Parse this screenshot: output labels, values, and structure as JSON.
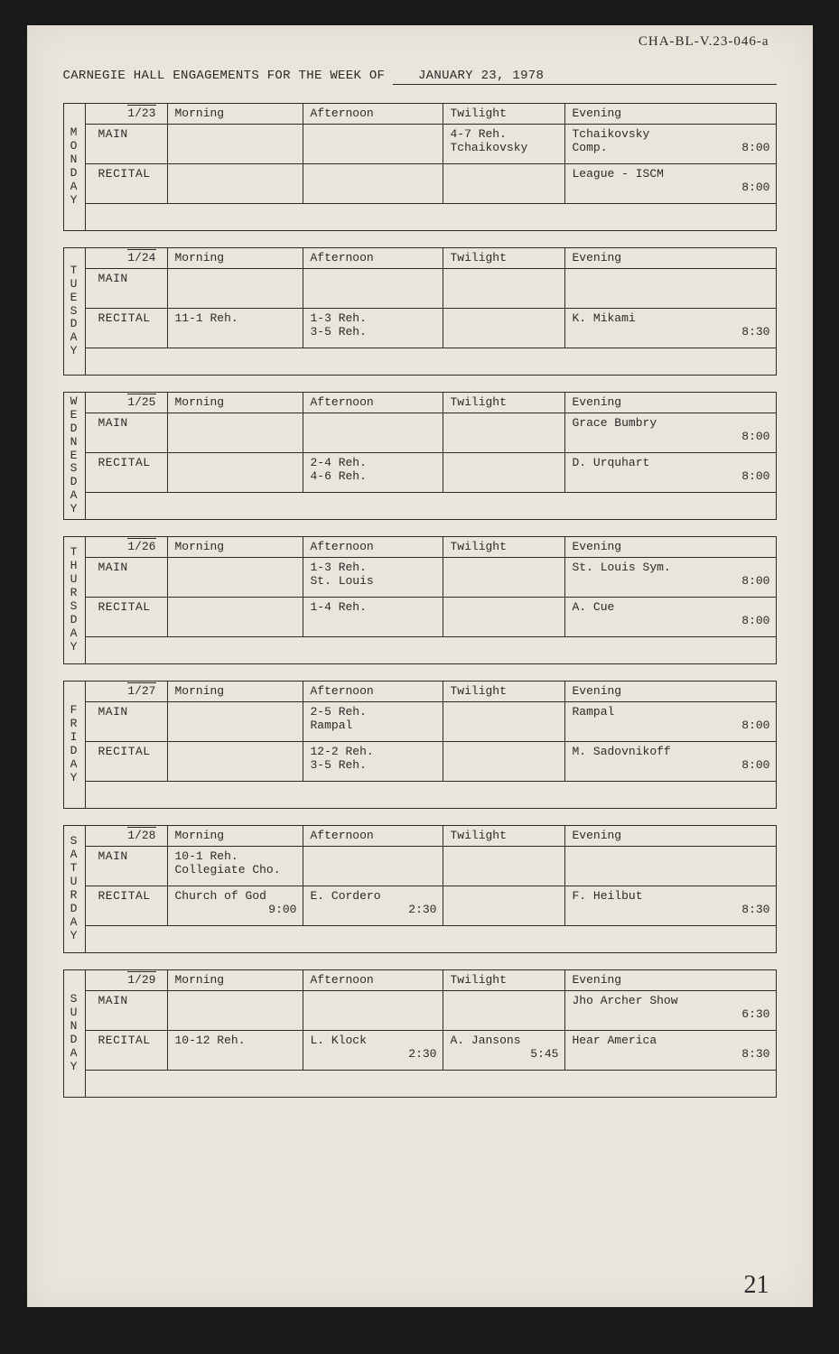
{
  "catalog_mark": "CHA-BL-V.23-046-a",
  "title_prefix": "CARNEGIE HALL ENGAGEMENTS FOR THE WEEK OF ",
  "week_of": "JANUARY 23, 1978",
  "page_number": "21",
  "column_headers": [
    "Morning",
    "Afternoon",
    "Twilight",
    "Evening"
  ],
  "venues": [
    "MAIN",
    "RECITAL"
  ],
  "days": [
    {
      "label": "MONDAY",
      "date": "1/23",
      "rows": [
        {
          "venue": "MAIN",
          "morning": {
            "text": "",
            "faint": false
          },
          "afternoon": {
            "text": "",
            "faint": false
          },
          "twilight": {
            "text": "4-7 Reh.\nTchaikovsky",
            "faint": false
          },
          "evening": {
            "text": "Tchaikovsky",
            "sub": "Comp.",
            "time": "8:00",
            "faint": false
          }
        },
        {
          "venue": "RECITAL",
          "morning": {
            "text": "",
            "faint": false
          },
          "afternoon": {
            "text": "",
            "faint": false
          },
          "twilight": {
            "text": "",
            "faint": false
          },
          "evening": {
            "text": "League - ISCM",
            "time": "8:00",
            "faint": false
          }
        }
      ]
    },
    {
      "label": "TUESDAY",
      "date": "1/24",
      "rows": [
        {
          "venue": "MAIN",
          "morning": {
            "text": "",
            "faint": false
          },
          "afternoon": {
            "text": "",
            "faint": false
          },
          "twilight": {
            "text": "",
            "faint": false
          },
          "evening": {
            "text": "",
            "time": "",
            "faint": true
          }
        },
        {
          "venue": "RECITAL",
          "morning": {
            "text": "11-1 Reh.",
            "faint": false
          },
          "afternoon": {
            "text": "1-3 Reh.\n3-5 Reh.",
            "faint": false
          },
          "twilight": {
            "text": "",
            "faint": false
          },
          "evening": {
            "text": "K. Mikami",
            "time": "8:30",
            "faint": false
          }
        }
      ]
    },
    {
      "label": "WEDNESDAY",
      "date": "1/25",
      "rows": [
        {
          "venue": "MAIN",
          "morning": {
            "text": "",
            "faint": true
          },
          "afternoon": {
            "text": "",
            "faint": false
          },
          "twilight": {
            "text": "",
            "faint": false
          },
          "evening": {
            "text": "Grace Bumbry",
            "time": "8:00",
            "faint": false
          }
        },
        {
          "venue": "RECITAL",
          "morning": {
            "text": "",
            "faint": true
          },
          "afternoon": {
            "text": "2-4 Reh.\n4-6 Reh.",
            "faint": false
          },
          "twilight": {
            "text": "",
            "faint": false
          },
          "evening": {
            "text": "D. Urquhart",
            "time": "8:00",
            "faint": false
          }
        }
      ]
    },
    {
      "label": "THURSDAY",
      "date": "1/26",
      "rows": [
        {
          "venue": "MAIN",
          "morning": {
            "text": "",
            "faint": true
          },
          "afternoon": {
            "text": "1-3 Reh.\nSt. Louis",
            "faint": false
          },
          "twilight": {
            "text": "",
            "faint": false
          },
          "evening": {
            "text": "St. Louis Sym.",
            "time": "8:00",
            "faint": false
          }
        },
        {
          "venue": "RECITAL",
          "morning": {
            "text": "",
            "faint": false
          },
          "afternoon": {
            "text": "1-4 Reh.",
            "faint": false
          },
          "twilight": {
            "text": "",
            "faint": false
          },
          "evening": {
            "text": "A. Cue",
            "time": "8:00",
            "faint": false
          }
        }
      ]
    },
    {
      "label": "FRIDAY",
      "date": "1/27",
      "rows": [
        {
          "venue": "MAIN",
          "morning": {
            "text": "",
            "faint": false
          },
          "afternoon": {
            "text": "2-5 Reh.\nRampal",
            "faint": false
          },
          "twilight": {
            "text": "",
            "faint": false
          },
          "evening": {
            "text": "Rampal",
            "time": "8:00",
            "faint": false
          }
        },
        {
          "venue": "RECITAL",
          "morning": {
            "text": "",
            "faint": true
          },
          "afternoon": {
            "text": "12-2 Reh.\n3-5 Reh.",
            "faint": false
          },
          "twilight": {
            "text": "",
            "faint": false
          },
          "evening": {
            "text": "M. Sadovnikoff",
            "time": "8:00",
            "faint": false
          }
        }
      ]
    },
    {
      "label": "SATURDAY",
      "date": "1/28",
      "rows": [
        {
          "venue": "MAIN",
          "morning": {
            "text": "10-1 Reh.\nCollegiate Cho.",
            "faint": false
          },
          "afternoon": {
            "text": "",
            "faint": true
          },
          "twilight": {
            "text": "",
            "faint": false
          },
          "evening": {
            "text": "",
            "time": "",
            "faint": true
          }
        },
        {
          "venue": "RECITAL",
          "morning": {
            "text": "Church of God",
            "time": "9:00",
            "faint": false
          },
          "afternoon": {
            "text": "E. Cordero",
            "time": "2:30",
            "faint": false
          },
          "twilight": {
            "text": "",
            "faint": true
          },
          "evening": {
            "text": "F. Heilbut",
            "time": "8:30",
            "faint": false
          }
        }
      ]
    },
    {
      "label": "SUNDAY",
      "date": "1/29",
      "rows": [
        {
          "venue": "MAIN",
          "morning": {
            "text": "",
            "faint": true
          },
          "afternoon": {
            "text": "",
            "faint": true
          },
          "twilight": {
            "text": "",
            "faint": false
          },
          "evening": {
            "text": "Jho Archer Show",
            "time": "6:30",
            "faint": false
          }
        },
        {
          "venue": "RECITAL",
          "morning": {
            "text": "10-12 Reh.",
            "faint": false
          },
          "afternoon": {
            "text": "L. Klock",
            "time": "2:30",
            "faint": false
          },
          "twilight": {
            "text": "A. Jansons",
            "time": "5:45",
            "faint": false
          },
          "evening": {
            "text": "Hear America",
            "time": "8:30",
            "faint": false
          }
        }
      ]
    }
  ]
}
